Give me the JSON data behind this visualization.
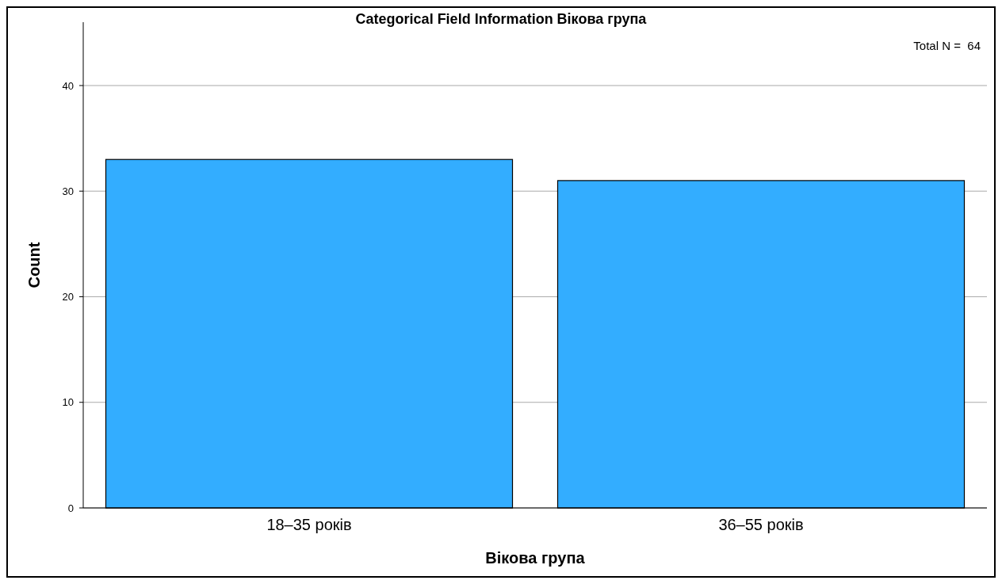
{
  "chart_data": {
    "type": "bar",
    "title": "Categorical Field Information Вікова група",
    "xlabel": "Вікова група",
    "ylabel": "Count",
    "categories": [
      "18–35 років",
      "36–55 років"
    ],
    "values": [
      33,
      31
    ],
    "color": "#33adff",
    "ylim": [
      0,
      46
    ],
    "yticks": [
      0,
      10,
      20,
      30,
      40
    ],
    "grid": "y",
    "annotations": [
      "Total N =  64"
    ]
  }
}
